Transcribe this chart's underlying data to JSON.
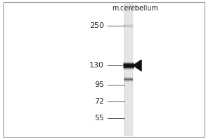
{
  "bg_color": "#ffffff",
  "panel_bg": "#ffffff",
  "outer_bg": "#e8e8e8",
  "lane_label": "m.cerebellum",
  "mw_markers": [
    250,
    130,
    95,
    72,
    55
  ],
  "band1_mw": 130,
  "band1_color": "#111111",
  "band1_strength": 0.92,
  "band2_mw": 104,
  "band2_color": "#555555",
  "band2_strength": 0.45,
  "arrow_color": "#111111",
  "tick_color": "#444444",
  "label_color": "#222222",
  "title_fontsize": 7.0,
  "marker_fontsize": 8.0,
  "lane_color": "#cccccc",
  "border_color": "#999999",
  "faint_band_mw": 250,
  "faint_band_color": "#aaaaaa",
  "faint_band_strength": 0.2
}
